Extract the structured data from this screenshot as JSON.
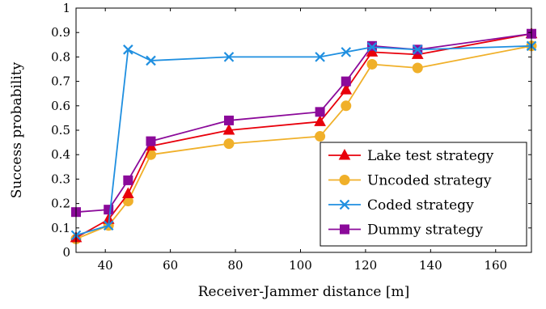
{
  "chart_data": {
    "type": "line",
    "xlabel": "Receiver-Jammer distance [m]",
    "ylabel": "Success probability",
    "xlim": [
      31,
      171
    ],
    "ylim": [
      0,
      1
    ],
    "xticks": [
      40,
      60,
      80,
      100,
      120,
      140,
      160
    ],
    "yticks": [
      0,
      0.1,
      0.2,
      0.3,
      0.4,
      0.5,
      0.6,
      0.7,
      0.8,
      0.9,
      1
    ],
    "xtick_labels": [
      "40",
      "60",
      "80",
      "100",
      "120",
      "140",
      "160"
    ],
    "ytick_labels": [
      "0",
      "0.1",
      "0.2",
      "0.3",
      "0.4",
      "0.5",
      "0.6",
      "0.7",
      "0.8",
      "0.9",
      "1"
    ],
    "grid": false,
    "legend_position": "bottom-right",
    "series": [
      {
        "name": "Lake test strategy",
        "color": "#e8000b",
        "marker": "triangle",
        "x": [
          31,
          41,
          47,
          54,
          78,
          106,
          114,
          122,
          136,
          171
        ],
        "y": [
          0.06,
          0.135,
          0.24,
          0.435,
          0.5,
          0.535,
          0.665,
          0.82,
          0.81,
          0.895
        ]
      },
      {
        "name": "Uncoded strategy",
        "color": "#f0b02a",
        "marker": "circle",
        "x": [
          31,
          41,
          47,
          54,
          78,
          106,
          114,
          122,
          136,
          171
        ],
        "y": [
          0.055,
          0.11,
          0.21,
          0.4,
          0.445,
          0.475,
          0.6,
          0.77,
          0.755,
          0.845
        ]
      },
      {
        "name": "Coded strategy",
        "color": "#1f8fe0",
        "marker": "x",
        "x": [
          31,
          41,
          47,
          54,
          78,
          106,
          114,
          122,
          136,
          171
        ],
        "y": [
          0.07,
          0.11,
          0.83,
          0.785,
          0.8,
          0.8,
          0.82,
          0.84,
          0.83,
          0.845
        ]
      },
      {
        "name": "Dummy strategy",
        "color": "#8b0a9a",
        "marker": "square",
        "x": [
          31,
          41,
          47,
          54,
          78,
          106,
          114,
          122,
          136,
          171
        ],
        "y": [
          0.165,
          0.175,
          0.295,
          0.455,
          0.54,
          0.575,
          0.7,
          0.845,
          0.83,
          0.895
        ]
      }
    ]
  }
}
